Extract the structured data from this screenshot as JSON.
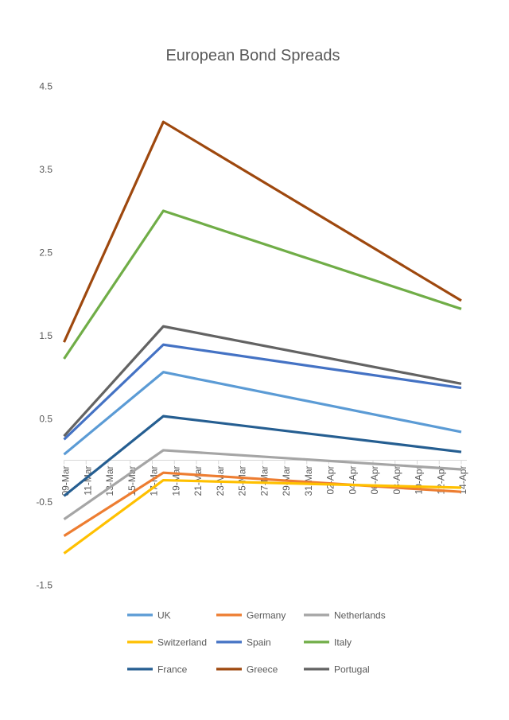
{
  "chart_data": {
    "type": "line",
    "title": "European Bond Spreads",
    "xlabel": "",
    "ylabel": "",
    "ylim": [
      -1.5,
      4.5
    ],
    "yticks": [
      4.5,
      3.5,
      2.5,
      1.5,
      0.5,
      -0.5,
      -1.5
    ],
    "xticks": [
      "09-Mar",
      "11-Mar",
      "13-Mar",
      "15-Mar",
      "17-Mar",
      "19-Mar",
      "21-Mar",
      "23-Mar",
      "25-Mar",
      "27-Mar",
      "29-Mar",
      "31-Mar",
      "02-Apr",
      "04-Apr",
      "06-Apr",
      "08-Apr",
      "10-Apr",
      "12-Apr",
      "14-Apr"
    ],
    "x": [
      "09-Mar",
      "18-Mar",
      "14-Apr"
    ],
    "grid": false,
    "legend_position": "bottom",
    "series": [
      {
        "name": "UK",
        "color": "#5B9BD5",
        "values": [
          0.07,
          1.06,
          0.34
        ]
      },
      {
        "name": "Germany",
        "color": "#ED7D31",
        "values": [
          -0.91,
          -0.15,
          -0.38
        ]
      },
      {
        "name": "Netherlands",
        "color": "#A5A5A5",
        "values": [
          -0.71,
          0.12,
          -0.11
        ]
      },
      {
        "name": "Switzerland",
        "color": "#FFC000",
        "values": [
          -1.12,
          -0.24,
          -0.33
        ]
      },
      {
        "name": "Spain",
        "color": "#4472C4",
        "values": [
          0.25,
          1.39,
          0.87
        ]
      },
      {
        "name": "Italy",
        "color": "#70AD47",
        "values": [
          1.22,
          3.0,
          1.82
        ]
      },
      {
        "name": "France",
        "color": "#255E91",
        "values": [
          -0.43,
          0.53,
          0.1
        ]
      },
      {
        "name": "Greece",
        "color": "#9E480E",
        "values": [
          1.42,
          4.07,
          1.92
        ]
      },
      {
        "name": "Portugal",
        "color": "#636363",
        "values": [
          0.29,
          1.61,
          0.92
        ]
      }
    ]
  }
}
